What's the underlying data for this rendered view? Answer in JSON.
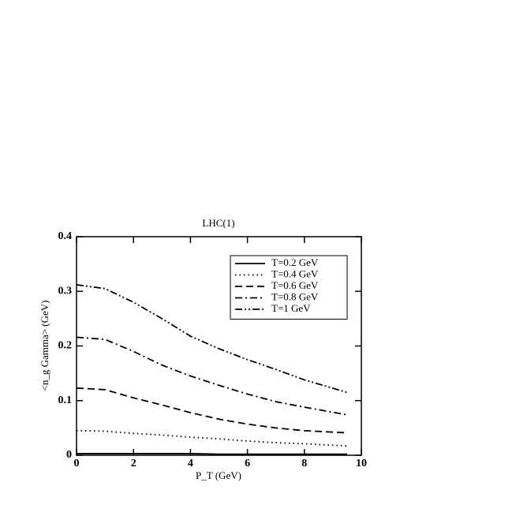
{
  "chart_data": {
    "type": "line",
    "title": "LHC(1)",
    "x_label": "P_T (GeV)",
    "y_label": "<n_g Gamma> (GeV)",
    "x": [
      0,
      1,
      2,
      3,
      4,
      5,
      6,
      7,
      8,
      9.5
    ],
    "series": [
      {
        "name": "T=0.2 GeV",
        "color": "#000000",
        "dash": "solid",
        "values": [
          0.003,
          0.003,
          0.003,
          0.003,
          0.003,
          0.002,
          0.002,
          0.002,
          0.002,
          0.002
        ]
      },
      {
        "name": "T=0.4 GeV",
        "color": "#000000",
        "dash": "dotted",
        "values": [
          0.045,
          0.044,
          0.04,
          0.037,
          0.033,
          0.03,
          0.026,
          0.023,
          0.021,
          0.017
        ]
      },
      {
        "name": "T=0.6 GeV",
        "color": "#000000",
        "dash": "dashed",
        "values": [
          0.123,
          0.12,
          0.105,
          0.092,
          0.078,
          0.066,
          0.057,
          0.05,
          0.045,
          0.041
        ]
      },
      {
        "name": "T=0.8 GeV",
        "color": "#000000",
        "dash": "dashdot",
        "values": [
          0.216,
          0.212,
          0.19,
          0.165,
          0.145,
          0.128,
          0.112,
          0.098,
          0.088,
          0.074
        ]
      },
      {
        "name": "T=1 GeV",
        "color": "#000000",
        "dash": "dashdotdot",
        "values": [
          0.312,
          0.305,
          0.28,
          0.25,
          0.218,
          0.195,
          0.175,
          0.157,
          0.138,
          0.115
        ]
      }
    ],
    "xlim": [
      0,
      10
    ],
    "xticks": [
      0,
      2,
      4,
      6,
      8,
      10
    ],
    "ylim": [
      0,
      0.4
    ],
    "yticks": [
      0,
      0.1,
      0.2,
      0.3,
      0.4
    ],
    "legend": "upper right"
  }
}
